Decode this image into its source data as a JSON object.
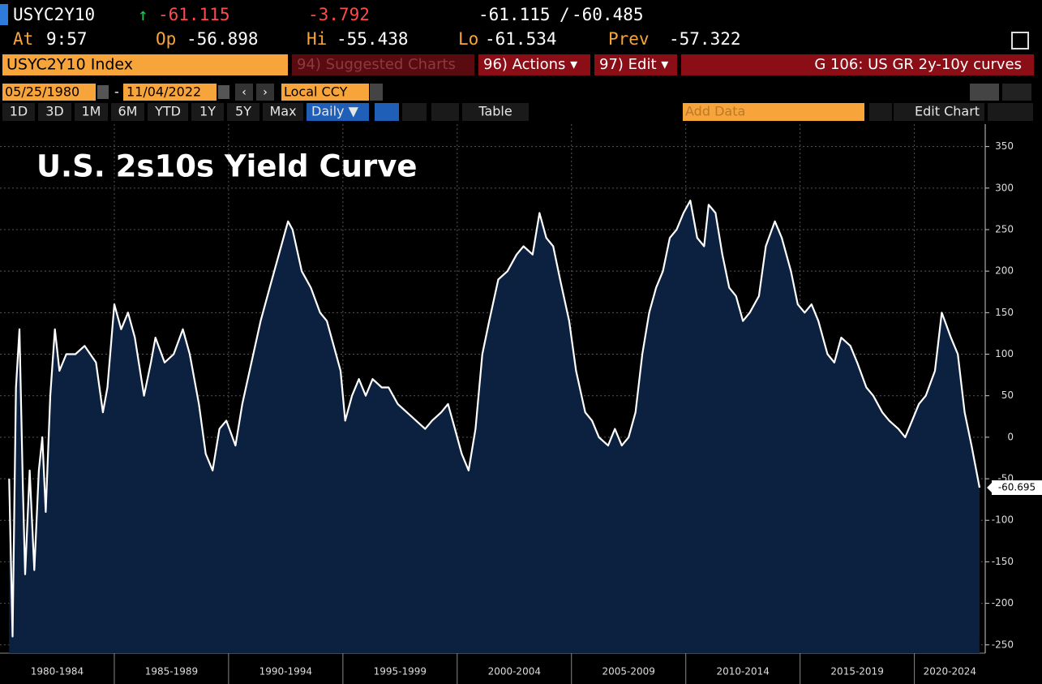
{
  "header": {
    "ticker": "USYC2Y10",
    "last": "-61.115",
    "change": "-3.792",
    "bid": "-61.115",
    "separator": "/",
    "ask": "-60.485",
    "at_label": "At",
    "at": "9:57",
    "open_label": "Op",
    "open": "-56.898",
    "high_label": "Hi",
    "high": "-55.438",
    "low_label": "Lo",
    "low": "-61.534",
    "prev_label": "Prev",
    "prev": "-57.322"
  },
  "toolbar": {
    "security": "USYC2Y10 Index",
    "suggested": "94) Suggested Charts",
    "actions": "96) Actions ▾",
    "edit": "97) Edit ▾",
    "page": "G 106: US GR 2y-10y curves",
    "start_date": "05/25/1980",
    "date_dash": "-",
    "end_date": "11/04/2022",
    "currency": "Local CCY",
    "ranges": [
      "1D",
      "3D",
      "1M",
      "6M",
      "YTD",
      "1Y",
      "5Y",
      "Max"
    ],
    "frequency": "Daily ▼",
    "table": "Table",
    "add_data": "Add Data",
    "edit_chart": "Edit Chart"
  },
  "chart_data": {
    "type": "area",
    "title": "U.S. 2s10s Yield Curve",
    "color": "#ffffff",
    "fill": "#0c2140",
    "grid": true,
    "xlim": [
      1980,
      2023.1
    ],
    "xticks": [
      {
        "value": 1980,
        "label": "1980-1984"
      },
      {
        "value": 1985,
        "label": "1985-1989"
      },
      {
        "value": 1990,
        "label": "1990-1994"
      },
      {
        "value": 1995,
        "label": "1995-1999"
      },
      {
        "value": 2000,
        "label": "2000-2004"
      },
      {
        "value": 2005,
        "label": "2005-2009"
      },
      {
        "value": 2010,
        "label": "2010-2014"
      },
      {
        "value": 2015,
        "label": "2015-2019"
      },
      {
        "value": 2020,
        "label": "2020-2024"
      }
    ],
    "ylim": [
      -260,
      377
    ],
    "yticks": [
      -250,
      -200,
      -150,
      -100,
      -50,
      0,
      50,
      100,
      150,
      200,
      250,
      300,
      350
    ],
    "last_label": "-60.695",
    "x": [
      1980.4,
      1980.55,
      1980.7,
      1980.85,
      1981.0,
      1981.1,
      1981.3,
      1981.5,
      1981.7,
      1981.85,
      1982.0,
      1982.2,
      1982.4,
      1982.6,
      1982.9,
      1983.3,
      1983.7,
      1984.2,
      1984.5,
      1984.7,
      1985.0,
      1985.3,
      1985.6,
      1985.9,
      1986.3,
      1986.6,
      1986.8,
      1987.2,
      1987.6,
      1988.0,
      1988.3,
      1988.7,
      1989.0,
      1989.3,
      1989.6,
      1989.9,
      1990.3,
      1990.6,
      1991.0,
      1991.4,
      1991.8,
      1992.2,
      1992.6,
      1992.8,
      1993.2,
      1993.6,
      1994.0,
      1994.3,
      1994.6,
      1994.9,
      1995.1,
      1995.4,
      1995.7,
      1996.0,
      1996.3,
      1996.7,
      1997.0,
      1997.4,
      1997.8,
      1998.2,
      1998.6,
      1998.9,
      1999.3,
      1999.6,
      1999.9,
      2000.2,
      2000.5,
      2000.8,
      2001.1,
      2001.4,
      2001.8,
      2002.2,
      2002.6,
      2002.9,
      2003.3,
      2003.6,
      2003.9,
      2004.2,
      2004.5,
      2004.9,
      2005.2,
      2005.6,
      2005.9,
      2006.2,
      2006.6,
      2006.9,
      2007.2,
      2007.5,
      2007.8,
      2008.1,
      2008.4,
      2008.7,
      2009.0,
      2009.3,
      2009.6,
      2009.9,
      2010.2,
      2010.5,
      2010.8,
      2011.0,
      2011.3,
      2011.6,
      2011.9,
      2012.2,
      2012.5,
      2012.8,
      2013.2,
      2013.5,
      2013.9,
      2014.2,
      2014.6,
      2014.9,
      2015.2,
      2015.5,
      2015.8,
      2016.2,
      2016.5,
      2016.8,
      2017.2,
      2017.5,
      2017.9,
      2018.2,
      2018.6,
      2018.9,
      2019.3,
      2019.6,
      2019.9,
      2020.2,
      2020.5,
      2020.9,
      2021.2,
      2021.6,
      2021.9,
      2022.2,
      2022.5,
      2022.85
    ],
    "values": [
      -50,
      -240,
      60,
      130,
      -60,
      -165,
      -40,
      -160,
      -40,
      0,
      -90,
      50,
      130,
      80,
      100,
      100,
      110,
      90,
      30,
      60,
      160,
      130,
      150,
      120,
      50,
      90,
      120,
      90,
      100,
      130,
      100,
      40,
      -20,
      -40,
      10,
      20,
      -10,
      40,
      90,
      140,
      180,
      220,
      260,
      250,
      200,
      180,
      150,
      140,
      110,
      80,
      20,
      50,
      70,
      50,
      70,
      60,
      60,
      40,
      30,
      20,
      10,
      20,
      30,
      40,
      10,
      -20,
      -40,
      10,
      100,
      140,
      190,
      200,
      220,
      230,
      220,
      270,
      240,
      230,
      190,
      140,
      80,
      30,
      20,
      0,
      -10,
      10,
      -10,
      0,
      30,
      100,
      150,
      180,
      200,
      240,
      250,
      270,
      285,
      240,
      230,
      280,
      270,
      220,
      180,
      170,
      140,
      150,
      170,
      230,
      260,
      240,
      200,
      160,
      150,
      160,
      140,
      100,
      90,
      120,
      110,
      90,
      60,
      50,
      30,
      20,
      10,
      0,
      20,
      40,
      50,
      80,
      150,
      120,
      100,
      30,
      -10,
      -60.695
    ]
  }
}
